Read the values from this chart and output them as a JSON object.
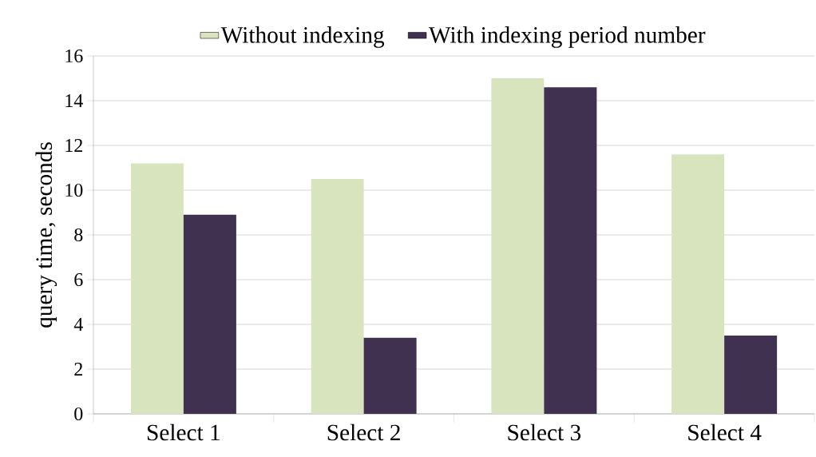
{
  "chart_data": {
    "type": "bar",
    "ylabel": "query time, seconds",
    "categories": [
      "Select 1",
      "Select 2",
      "Select 3",
      "Select 4"
    ],
    "series": [
      {
        "name": "Without indexing",
        "color": "#d7e4bd",
        "values": [
          11.2,
          10.5,
          15.0,
          11.6
        ]
      },
      {
        "name": "With indexing period number",
        "color": "#403151",
        "values": [
          8.9,
          3.4,
          14.6,
          3.5
        ]
      }
    ],
    "ylim": [
      0,
      16
    ],
    "yticks": [
      0,
      2,
      4,
      6,
      8,
      10,
      12,
      14,
      16
    ],
    "grid": "y",
    "legend": "top"
  }
}
